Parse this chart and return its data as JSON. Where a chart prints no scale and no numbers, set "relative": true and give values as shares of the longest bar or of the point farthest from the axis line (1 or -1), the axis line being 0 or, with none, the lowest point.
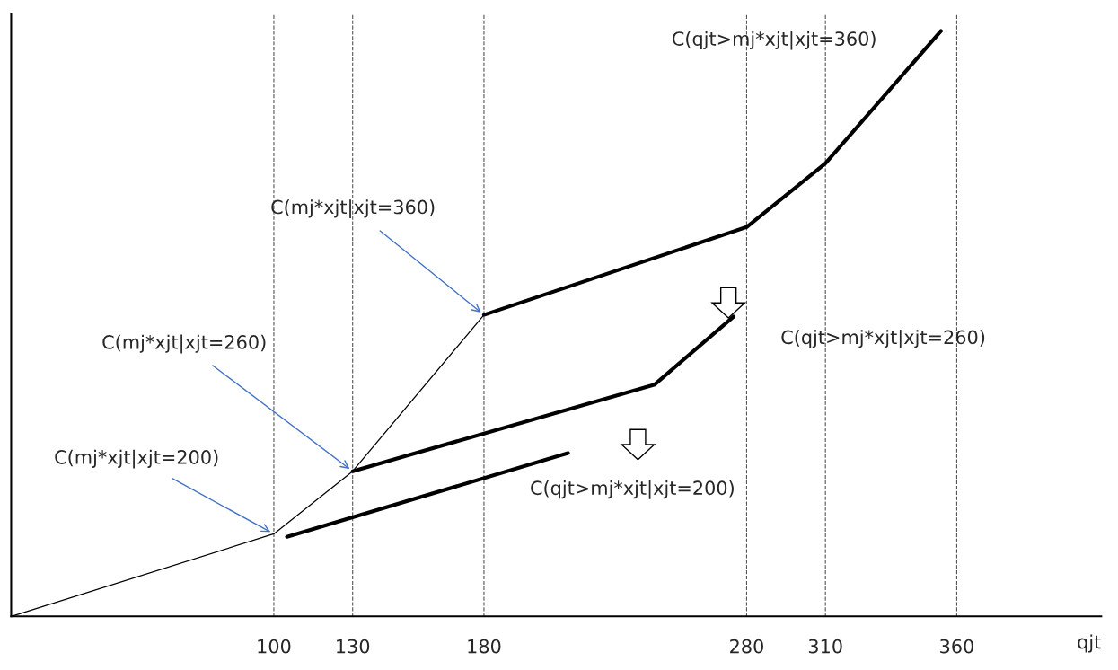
{
  "chart_data": {
    "type": "line",
    "relative": true,
    "xlabel": "qjt",
    "xlim": [
      0,
      415
    ],
    "xticks": [
      100,
      130,
      180,
      280,
      310,
      360
    ],
    "grid": false,
    "marker": "none",
    "line_style": "solid",
    "series": [
      {
        "color": "#000000",
        "x": [
          0,
          100,
          130,
          180
        ],
        "values": [
          0,
          0.141,
          0.248,
          0.515
        ]
      },
      {
        "color": "#000000",
        "x": [
          105,
          212
        ],
        "values": [
          0.136,
          0.279
        ]
      },
      {
        "color": "#000000",
        "x": [
          130,
          245,
          275
        ],
        "values": [
          0.248,
          0.396,
          0.512
        ]
      },
      {
        "color": "#000000",
        "x": [
          180,
          280,
          310,
          354
        ],
        "values": [
          0.515,
          0.665,
          0.774,
          1.0
        ]
      }
    ],
    "ref_lines": [
      {
        "axis": "x",
        "value": 100,
        "color": "#555555",
        "line_style": "dashed"
      },
      {
        "axis": "x",
        "value": 130,
        "color": "#555555",
        "line_style": "dashed"
      },
      {
        "axis": "x",
        "value": 180,
        "color": "#555555",
        "line_style": "dashed"
      },
      {
        "axis": "x",
        "value": 280,
        "color": "#555555",
        "line_style": "dashed"
      },
      {
        "axis": "x",
        "value": 310,
        "color": "#555555",
        "line_style": "dashed"
      },
      {
        "axis": "x",
        "value": 360,
        "color": "#555555",
        "line_style": "dashed"
      }
    ],
    "annotations": [
      {
        "text": "C(mj*xjt|xjt=360)",
        "x": 180,
        "y": 0.515
      },
      {
        "text": "C(mj*xjt|xjt=260)",
        "x": 130,
        "y": 0.248
      },
      {
        "text": "C(mj*xjt|xjt=200)",
        "x": 100,
        "y": 0.141
      },
      "C(qjt>mj*xjt|xjt=360)",
      "C(qjt>mj*xjt|xjt=260)",
      "C(qjt>mj*xjt|xjt=200)"
    ]
  }
}
